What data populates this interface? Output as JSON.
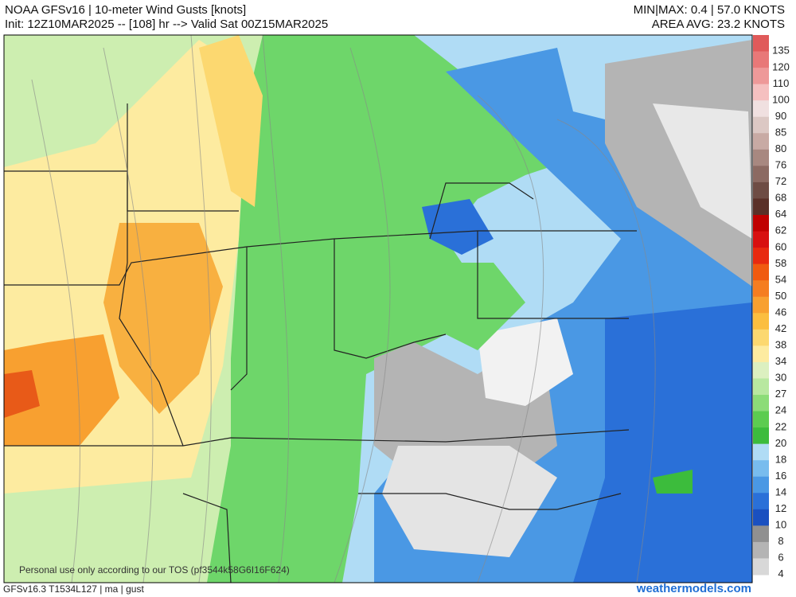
{
  "header": {
    "title": "NOAA GFSv16 | 10-meter Wind Gusts [knots]",
    "init": "Init: 12Z10MAR2025 -- [108] hr --> Valid Sat 00Z15MAR2025",
    "minmax": "MIN|MAX: 0.4 | 57.0 KNOTS",
    "area_avg": "AREA AVG: 23.2 KNOTS"
  },
  "colorbar": {
    "labels": [
      135,
      120,
      110,
      100,
      90,
      85,
      80,
      76,
      72,
      68,
      64,
      62,
      60,
      58,
      54,
      50,
      46,
      42,
      38,
      34,
      30,
      27,
      24,
      22,
      20,
      18,
      16,
      14,
      12,
      10,
      8,
      6,
      4
    ],
    "colors": [
      "#e05a5a",
      "#e87878",
      "#ee9999",
      "#f5c0c0",
      "#f0e0e0",
      "#dcc8c4",
      "#c8aaa4",
      "#a88880",
      "#8c6a62",
      "#6e4c44",
      "#5a3028",
      "#c00000",
      "#d81010",
      "#e82a10",
      "#f05a10",
      "#f57d20",
      "#f8a030",
      "#fbbe40",
      "#fcd870",
      "#fdeba0",
      "#dcf0c0",
      "#b8e8a0",
      "#8cdc78",
      "#5ccc50",
      "#3cbc3c",
      "#b0dcf5",
      "#78bcee",
      "#4a98e4",
      "#2a70d8",
      "#1a50c0",
      "#909090",
      "#b4b4b4",
      "#d8d8d8"
    ]
  },
  "footer": {
    "left": "GFSv16.3 T1534L127 | ma | gust",
    "right": "weathermodels.com",
    "watermark": "Personal use only according to our TOS (pf3544k58G6I16F624)"
  }
}
